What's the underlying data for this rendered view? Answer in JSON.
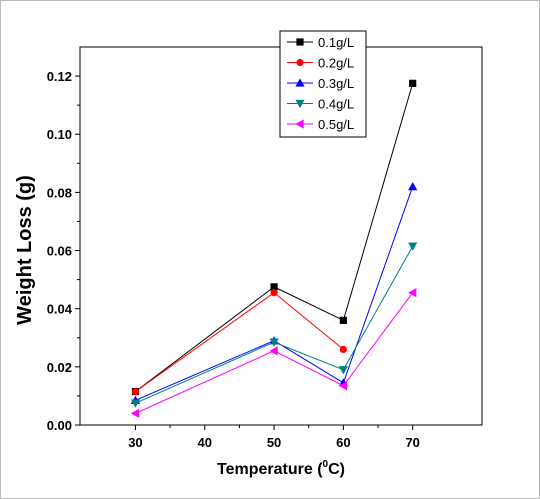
{
  "chart_data": {
    "type": "line",
    "title": "",
    "xlabel": "Temperature (",
    "xlabel_sup": "0",
    "xlabel_tail": "C)",
    "ylabel": "Weight Loss (g)",
    "x": [
      30,
      50,
      60,
      70
    ],
    "xlim": [
      22,
      80
    ],
    "ylim": [
      0,
      0.13
    ],
    "xticks": [
      30,
      40,
      50,
      60,
      70
    ],
    "xtick_labels": [
      "30",
      "40",
      "50",
      "60",
      "70"
    ],
    "yticks": [
      0,
      0.02,
      0.04,
      0.06,
      0.08,
      0.1,
      0.12
    ],
    "ytick_labels": [
      "0.00",
      "0.02",
      "0.04",
      "0.06",
      "0.08",
      "0.10",
      "0.12"
    ],
    "grid": false,
    "legend_position": "top-right",
    "series": [
      {
        "name": "0.1g/L",
        "values": [
          0.0115,
          0.0475,
          0.036,
          0.1175
        ],
        "color": "#000000",
        "marker": "square"
      },
      {
        "name": "0.2g/L",
        "values": [
          0.0115,
          0.0455,
          0.026,
          null
        ],
        "color": "#ff0000",
        "marker": "circle"
      },
      {
        "name": "0.3g/L",
        "values": [
          0.0085,
          0.029,
          0.0145,
          0.082
        ],
        "color": "#0000ff",
        "marker": "triangle-up"
      },
      {
        "name": "0.4g/L",
        "values": [
          0.0075,
          0.0285,
          0.019,
          0.0615
        ],
        "color": "#008080",
        "marker": "triangle-down"
      },
      {
        "name": "0.5g/L",
        "values": [
          0.004,
          0.0255,
          0.0135,
          0.0455
        ],
        "color": "#ff00ff",
        "marker": "triangle-left"
      }
    ]
  }
}
